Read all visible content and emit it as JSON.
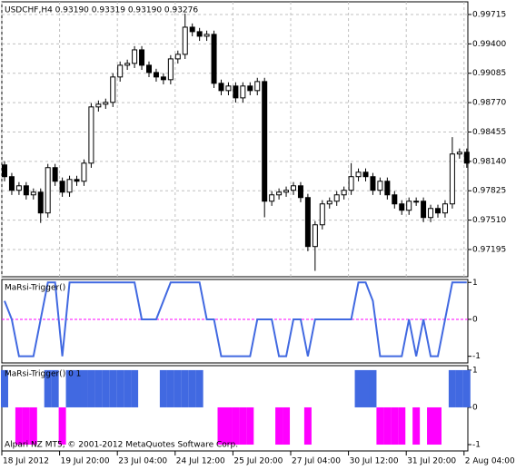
{
  "chart_data": [
    {
      "type": "candlestick",
      "title": "USDCHF,H4  0.93190 0.93319 0.93190 0.93276",
      "categories": [
        "18 Jul 2012",
        null,
        null,
        null,
        null,
        null,
        null,
        null,
        "19 Jul 20:00",
        null,
        null,
        null,
        null,
        null,
        null,
        null,
        "23 Jul 04:00",
        null,
        null,
        null,
        null,
        null,
        null,
        null,
        "24 Jul 12:00",
        null,
        null,
        null,
        null,
        null,
        null,
        null,
        "25 Jul 20:00",
        null,
        null,
        null,
        null,
        null,
        null,
        null,
        "27 Jul 04:00",
        null,
        null,
        null,
        null,
        null,
        null,
        null,
        "30 Jul 12:00",
        null,
        null,
        null,
        null,
        null,
        null,
        null,
        "31 Jul 20:00",
        null,
        null,
        null,
        null,
        null,
        null,
        null,
        "2 Aug 04:00"
      ],
      "open": [
        0.98102,
        0.97976,
        0.9783,
        0.97878,
        0.97781,
        0.9781,
        0.97587,
        0.98073,
        0.97927,
        0.9781,
        0.97946,
        0.97927,
        0.98121,
        0.98724,
        0.98753,
        0.98773,
        0.99045,
        0.99171,
        0.99191,
        0.99336,
        0.99171,
        0.99093,
        0.99045,
        0.99016,
        0.99239,
        0.99288,
        0.99579,
        0.99531,
        0.99482,
        0.99502,
        0.98977,
        0.98899,
        0.98948,
        0.98821,
        0.98948,
        0.98899,
        0.98996,
        0.97713,
        0.97781,
        0.9781,
        0.9783,
        0.97878,
        0.97752,
        0.97227,
        0.9746,
        0.97684,
        0.97713,
        0.97781,
        0.9783,
        0.97976,
        0.98024,
        0.97976,
        0.9783,
        0.97927,
        0.97781,
        0.97684,
        0.97616,
        0.97713,
        0.97713,
        0.97538,
        0.97635,
        0.97587,
        0.97684,
        0.98219,
        0.98238
      ],
      "high": [
        0.98142,
        0.98016,
        0.97918,
        0.97918,
        0.9785,
        0.9785,
        0.98113,
        0.98113,
        0.97967,
        0.97986,
        0.97986,
        0.98161,
        0.98764,
        0.98793,
        0.98813,
        0.99085,
        0.99211,
        0.99231,
        0.99376,
        0.99376,
        0.99211,
        0.99133,
        0.99085,
        0.99279,
        0.99328,
        0.99725,
        0.99619,
        0.99571,
        0.99542,
        0.99542,
        0.99017,
        0.98988,
        0.98988,
        0.98988,
        0.98988,
        0.99036,
        0.99036,
        0.97821,
        0.9785,
        0.9787,
        0.97918,
        0.97918,
        0.97792,
        0.975,
        0.97724,
        0.97753,
        0.97821,
        0.9787,
        0.98121,
        0.98064,
        0.98064,
        0.98016,
        0.97967,
        0.97967,
        0.97821,
        0.97724,
        0.97753,
        0.97753,
        0.97753,
        0.97675,
        0.97675,
        0.97724,
        0.984,
        0.98278,
        0.98278
      ],
      "low": [
        0.97926,
        0.9778,
        0.9778,
        0.97731,
        0.97731,
        0.9748,
        0.97537,
        0.97877,
        0.9776,
        0.9776,
        0.97877,
        0.97877,
        0.98071,
        0.98674,
        0.98703,
        0.98723,
        0.98995,
        0.99121,
        0.99141,
        0.99121,
        0.99043,
        0.98995,
        0.98966,
        0.98966,
        0.99189,
        0.99238,
        0.99481,
        0.99432,
        0.99432,
        0.98927,
        0.98849,
        0.98849,
        0.98771,
        0.98771,
        0.98849,
        0.98849,
        0.9754,
        0.97663,
        0.97731,
        0.9776,
        0.9778,
        0.97702,
        0.97177,
        0.96966,
        0.9741,
        0.97634,
        0.97663,
        0.97731,
        0.9778,
        0.97926,
        0.97926,
        0.9778,
        0.9778,
        0.97731,
        0.97634,
        0.97566,
        0.97566,
        0.97663,
        0.97488,
        0.97488,
        0.97537,
        0.97537,
        0.97634,
        0.98169,
        0.98071
      ],
      "close": [
        0.97976,
        0.9783,
        0.97878,
        0.97781,
        0.9781,
        0.97587,
        0.98073,
        0.97927,
        0.9781,
        0.97946,
        0.97927,
        0.98121,
        0.98724,
        0.98753,
        0.98773,
        0.99045,
        0.99171,
        0.99191,
        0.99336,
        0.99171,
        0.99093,
        0.99045,
        0.99016,
        0.99239,
        0.99288,
        0.99579,
        0.99531,
        0.99482,
        0.99502,
        0.98977,
        0.98899,
        0.98948,
        0.98821,
        0.98948,
        0.98899,
        0.98996,
        0.97713,
        0.97781,
        0.9781,
        0.9783,
        0.97878,
        0.97752,
        0.97227,
        0.9746,
        0.97684,
        0.97713,
        0.97781,
        0.9783,
        0.97976,
        0.98024,
        0.97976,
        0.9783,
        0.97927,
        0.97781,
        0.97684,
        0.97616,
        0.97713,
        0.97713,
        0.97538,
        0.97635,
        0.97587,
        0.97684,
        0.98219,
        0.98238,
        0.98121
      ],
      "up_color": "#ffffff",
      "down_color": "#000000",
      "ylim": [
        0.96903,
        0.99851
      ],
      "yticks": [
        0.97195,
        {
          "value": 0.9751,
          "label": "0.97510"
        },
        0.97825,
        {
          "value": 0.9814,
          "label": "0.98140"
        },
        0.98455,
        {
          "value": 0.9877,
          "label": "0.98770"
        },
        0.99085,
        {
          "value": 0.994,
          "label": "0.99400"
        },
        0.99715
      ],
      "grid": true
    },
    {
      "type": "line",
      "title": "MaRsi-Trigger()",
      "series": [
        {
          "color": "#4169e1",
          "values": [
            0.5,
            0,
            -1,
            -1,
            -1,
            0,
            1,
            1,
            -1,
            1,
            1,
            1,
            1,
            1,
            1,
            1,
            1,
            1,
            1,
            0,
            0,
            0,
            0.5,
            1,
            1,
            1,
            1,
            1,
            0,
            0,
            -1,
            -1,
            -1,
            -1,
            -1,
            0,
            0,
            0,
            -1,
            -1,
            0,
            0,
            -1,
            0,
            0,
            0,
            0,
            0,
            0,
            1,
            1,
            0.5,
            -1,
            -1,
            -1,
            -1,
            0,
            -1,
            0,
            -1,
            -1,
            0,
            1,
            1,
            1
          ]
        }
      ],
      "ylim": [
        -1.18,
        1.08
      ],
      "yticks": [
        -1,
        0,
        1
      ],
      "level_color": "#ff00ff"
    },
    {
      "type": "bar",
      "title": "MaRsi-Trigger() 0 1",
      "annotation": "Alpari NZ MT5, © 2001-2012 MetaQuotes Software Corp.",
      "series": [
        {
          "color": "#4169e1",
          "values": [
            1,
            0,
            0,
            0,
            0,
            0,
            1,
            1,
            0,
            1,
            1,
            1,
            1,
            1,
            1,
            1,
            1,
            1,
            1,
            0,
            0,
            0,
            1,
            1,
            1,
            1,
            1,
            1,
            0,
            0,
            0,
            0,
            0,
            0,
            0,
            0,
            0,
            0,
            0,
            0,
            0,
            0,
            0,
            0,
            0,
            0,
            0,
            0,
            0,
            1,
            1,
            1,
            0,
            0,
            0,
            0,
            0,
            0,
            0,
            0,
            0,
            0,
            1,
            1,
            1
          ]
        },
        {
          "color": "#ff00ff",
          "values": [
            0,
            0,
            -1,
            -1,
            -1,
            0,
            0,
            0,
            -1,
            0,
            0,
            0,
            0,
            0,
            0,
            0,
            0,
            0,
            0,
            0,
            0,
            0,
            0,
            0,
            0,
            0,
            0,
            0,
            0,
            0,
            -1,
            -1,
            -1,
            -1,
            -1,
            0,
            0,
            0,
            -1,
            -1,
            0,
            0,
            -1,
            0,
            0,
            0,
            0,
            0,
            0,
            0,
            0,
            0,
            -1,
            -1,
            -1,
            -1,
            0,
            -1,
            0,
            -1,
            -1,
            0,
            0,
            0,
            0
          ]
        }
      ],
      "ylim": [
        -1.17,
        1.12
      ],
      "yticks": [
        -1,
        0,
        1
      ]
    }
  ]
}
